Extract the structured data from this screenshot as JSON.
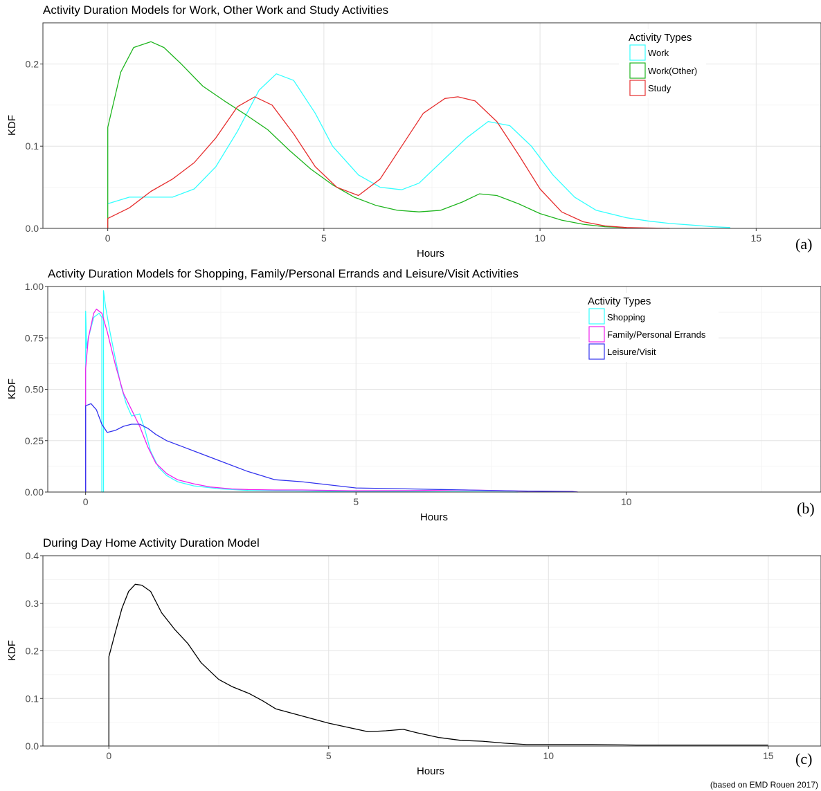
{
  "footnote": "(based on EMD Rouen 2017)",
  "chart_data": [
    {
      "type": "line",
      "tag": "(a)",
      "title": "Activity Duration Models for Work, Other Work and Study Activities",
      "xlabel": "Hours",
      "ylabel": "KDF",
      "xlim": [
        -1.5,
        16.5
      ],
      "ylim": [
        0,
        0.25
      ],
      "xticks": [
        0,
        5,
        10,
        15
      ],
      "yticks": [
        0.0,
        0.1,
        0.2
      ],
      "ytick_labels": [
        "0.0",
        "0.1",
        "0.2"
      ],
      "grid": true,
      "legend": {
        "title": "Activity Types",
        "position": "top-right"
      },
      "series": [
        {
          "name": "Work",
          "color": "#33ffff",
          "x": [
            0,
            0.5,
            1,
            1.5,
            2,
            2.5,
            3,
            3.5,
            3.9,
            4.3,
            4.8,
            5.2,
            5.8,
            6.3,
            6.8,
            7.2,
            7.8,
            8.3,
            8.8,
            9.3,
            9.8,
            10.3,
            10.8,
            11.3,
            12,
            12.5,
            13,
            13.5,
            14,
            14.4
          ],
          "y": [
            0.03,
            0.038,
            0.038,
            0.038,
            0.048,
            0.075,
            0.118,
            0.168,
            0.188,
            0.18,
            0.14,
            0.1,
            0.065,
            0.05,
            0.047,
            0.055,
            0.085,
            0.11,
            0.13,
            0.125,
            0.1,
            0.065,
            0.038,
            0.022,
            0.013,
            0.009,
            0.006,
            0.004,
            0.002,
            0.001
          ]
        },
        {
          "name": "Work(Other)",
          "color": "#1fb51f",
          "x": [
            0,
            0,
            0.3,
            0.6,
            1,
            1.3,
            1.7,
            2.2,
            2.7,
            3.2,
            3.7,
            4.2,
            4.7,
            5.2,
            5.7,
            6.2,
            6.7,
            7.2,
            7.7,
            8.2,
            8.6,
            9,
            9.5,
            10,
            10.5,
            11,
            11.5,
            12
          ],
          "y": [
            0,
            0.123,
            0.19,
            0.22,
            0.227,
            0.22,
            0.2,
            0.173,
            0.155,
            0.138,
            0.12,
            0.095,
            0.072,
            0.053,
            0.038,
            0.028,
            0.022,
            0.02,
            0.022,
            0.032,
            0.042,
            0.04,
            0.03,
            0.018,
            0.01,
            0.005,
            0.002,
            0.001
          ]
        },
        {
          "name": "Study",
          "color": "#e62e2e",
          "x": [
            0,
            0,
            0.5,
            1,
            1.5,
            2,
            2.5,
            3,
            3.4,
            3.8,
            4.3,
            4.8,
            5.3,
            5.8,
            6.3,
            6.8,
            7.3,
            7.8,
            8.1,
            8.5,
            9,
            9.5,
            10,
            10.5,
            11,
            11.5,
            12,
            12.5,
            13
          ],
          "y": [
            0,
            0.012,
            0.025,
            0.045,
            0.06,
            0.08,
            0.11,
            0.148,
            0.16,
            0.15,
            0.115,
            0.075,
            0.05,
            0.04,
            0.06,
            0.1,
            0.14,
            0.158,
            0.16,
            0.155,
            0.13,
            0.09,
            0.048,
            0.02,
            0.008,
            0.003,
            0.001,
            0.0005,
            0
          ]
        }
      ]
    },
    {
      "type": "line",
      "tag": "(b)",
      "title": "Activity Duration Models for Shopping, Family/Personal Errands and Leisure/Visit Activities",
      "xlabel": "Hours",
      "ylabel": "KDF",
      "xlim": [
        -0.7,
        13.6
      ],
      "ylim": [
        0,
        1.0
      ],
      "xticks": [
        0,
        5,
        10
      ],
      "yticks": [
        0.0,
        0.25,
        0.5,
        0.75,
        1.0
      ],
      "ytick_labels": [
        "0.00",
        "0.25",
        "0.50",
        "0.75",
        "1.00"
      ],
      "grid": true,
      "legend": {
        "title": "Activity Types",
        "position": "top-right"
      },
      "series": [
        {
          "name": "Shopping",
          "color": "#33ffff",
          "x": [
            0,
            0,
            0.02,
            0.05,
            0.15,
            0.25,
            0.3,
            0.3,
            0.33,
            0.33,
            0.37,
            0.45,
            0.55,
            0.65,
            0.75,
            0.85,
            1.0,
            1.1,
            1.2,
            1.35,
            1.5,
            1.7,
            2.0,
            2.5,
            3.0,
            4.0,
            5.0,
            6.0,
            7.0,
            8.0
          ],
          "y": [
            0,
            0.88,
            0.7,
            0.75,
            0.85,
            0.87,
            0.85,
            0,
            0,
            0.98,
            0.9,
            0.78,
            0.65,
            0.52,
            0.43,
            0.37,
            0.38,
            0.3,
            0.2,
            0.12,
            0.08,
            0.05,
            0.03,
            0.015,
            0.008,
            0.005,
            0.003,
            0.002,
            0.001,
            0
          ]
        },
        {
          "name": "Family/Personal Errands",
          "color": "#ee22ee",
          "x": [
            0,
            0,
            0.05,
            0.15,
            0.2,
            0.3,
            0.4,
            0.55,
            0.7,
            0.85,
            1.0,
            1.15,
            1.3,
            1.5,
            1.7,
            2.0,
            2.3,
            2.7,
            3.0,
            3.5,
            4.0,
            5.0,
            6.0,
            7.0,
            7.5,
            8.0,
            9.0,
            9.1
          ],
          "y": [
            0,
            0.6,
            0.75,
            0.87,
            0.89,
            0.87,
            0.78,
            0.62,
            0.48,
            0.4,
            0.32,
            0.22,
            0.14,
            0.09,
            0.06,
            0.04,
            0.025,
            0.015,
            0.012,
            0.01,
            0.01,
            0.006,
            0.007,
            0.01,
            0.008,
            0.005,
            0.003,
            0
          ]
        },
        {
          "name": "Leisure/Visit",
          "color": "#3333ee",
          "x": [
            0,
            0,
            0.1,
            0.2,
            0.3,
            0.4,
            0.55,
            0.7,
            0.85,
            1.0,
            1.15,
            1.3,
            1.5,
            1.8,
            2.0,
            2.5,
            3.0,
            3.5,
            4.0,
            5.0,
            6.0,
            7.0,
            8.0,
            9.0,
            9.1
          ],
          "y": [
            0,
            0.42,
            0.43,
            0.4,
            0.33,
            0.29,
            0.3,
            0.32,
            0.33,
            0.33,
            0.31,
            0.28,
            0.25,
            0.22,
            0.2,
            0.15,
            0.1,
            0.06,
            0.05,
            0.02,
            0.015,
            0.01,
            0.005,
            0.002,
            0
          ]
        }
      ]
    },
    {
      "type": "line",
      "tag": "(c)",
      "title": "During Day Home Activity Duration Model",
      "xlabel": "Hours",
      "ylabel": "KDF",
      "xlim": [
        -1.5,
        16.2
      ],
      "ylim": [
        0,
        0.4
      ],
      "xticks": [
        0,
        5,
        10,
        15
      ],
      "yticks": [
        0.0,
        0.1,
        0.2,
        0.3,
        0.4
      ],
      "ytick_labels": [
        "0.0",
        "0.1",
        "0.2",
        "0.3",
        "0.4"
      ],
      "grid": true,
      "series": [
        {
          "name": "",
          "color": "#000000",
          "x": [
            0,
            0,
            0.15,
            0.3,
            0.45,
            0.6,
            0.75,
            0.95,
            1.2,
            1.5,
            1.8,
            2.1,
            2.5,
            2.8,
            3.2,
            3.5,
            3.8,
            4.2,
            4.6,
            5.0,
            5.5,
            5.9,
            6.3,
            6.7,
            7.0,
            7.5,
            8.0,
            8.5,
            9.0,
            9.5,
            10.0,
            10.5,
            11.0,
            12.0,
            13.0,
            14.0,
            15.0
          ],
          "y": [
            0,
            0.188,
            0.24,
            0.29,
            0.325,
            0.34,
            0.338,
            0.325,
            0.28,
            0.245,
            0.215,
            0.175,
            0.14,
            0.125,
            0.11,
            0.095,
            0.078,
            0.068,
            0.058,
            0.048,
            0.038,
            0.03,
            0.032,
            0.035,
            0.028,
            0.018,
            0.012,
            0.01,
            0.006,
            0.003,
            0.003,
            0.003,
            0.003,
            0.002,
            0.002,
            0.002,
            0.002
          ]
        }
      ]
    }
  ]
}
